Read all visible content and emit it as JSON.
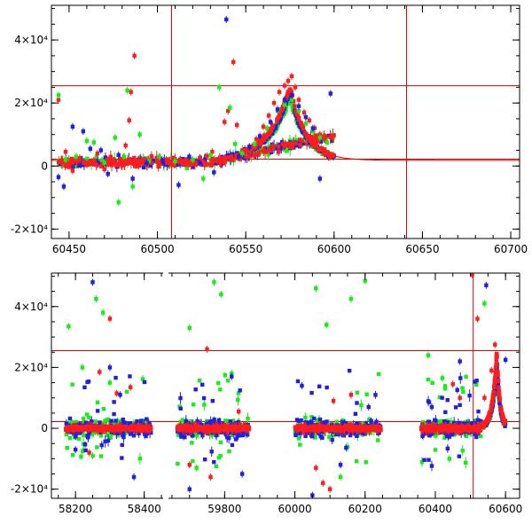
{
  "colors": {
    "red": "#ff1c1c",
    "green": "#14ef14",
    "blue": "#1f1fe6",
    "model_line": "#e00000",
    "frame": "#000000"
  },
  "chart_data": [
    {
      "type": "scatter",
      "title": "",
      "xlabel": "",
      "ylabel": "",
      "xlim": [
        60440,
        60705
      ],
      "ylim": [
        -23000,
        51000
      ],
      "x_ticks": [
        60450,
        60500,
        60550,
        60600,
        60650,
        60700
      ],
      "x_tick_labels": [
        "60450",
        "60500",
        "60550",
        "60600",
        "60650",
        "60700"
      ],
      "y_ticks": [
        -20000,
        0,
        20000,
        40000
      ],
      "y_tick_labels": [
        "-2×10⁴",
        "0",
        "2×10⁴",
        "4×10⁴"
      ],
      "reference_lines": {
        "horizontal": [
          25500,
          2200
        ],
        "vertical": [
          60508,
          60641
        ]
      },
      "model_curve": {
        "peak_x": 60575,
        "peak_y": 23000,
        "baseline": 1800,
        "x_range": [
          60440,
          60705
        ]
      },
      "series": [
        {
          "color": "red",
          "points": [
            {
              "x": 60444,
              "y": 21000
            },
            {
              "x": 60448,
              "y": 4500
            },
            {
              "x": 60452,
              "y": -1500
            },
            {
              "x": 60456,
              "y": 2500
            },
            {
              "x": 60460,
              "y": 500
            },
            {
              "x": 60464,
              "y": 1800
            },
            {
              "x": 60466,
              "y": 4000
            },
            {
              "x": 60470,
              "y": -1000
            },
            {
              "x": 60474,
              "y": 2000
            },
            {
              "x": 60478,
              "y": 600
            },
            {
              "x": 60482,
              "y": 6500
            },
            {
              "x": 60484,
              "y": 14500
            },
            {
              "x": 60485,
              "y": 23500
            },
            {
              "x": 60487,
              "y": 35000
            },
            {
              "x": 60490,
              "y": 1200
            },
            {
              "x": 60495,
              "y": 1500
            },
            {
              "x": 60500,
              "y": 1300
            },
            {
              "x": 60505,
              "y": 2000
            },
            {
              "x": 60512,
              "y": 1400
            },
            {
              "x": 60518,
              "y": 1800
            },
            {
              "x": 60524,
              "y": 2600
            },
            {
              "x": 60528,
              "y": 3200
            },
            {
              "x": 60531,
              "y": 4500
            },
            {
              "x": 60534,
              "y": 1500
            },
            {
              "x": 60538,
              "y": 14000
            },
            {
              "x": 60540,
              "y": 17500
            },
            {
              "x": 60542,
              "y": 3000
            },
            {
              "x": 60543,
              "y": 33000
            },
            {
              "x": 60545,
              "y": 13000
            },
            {
              "x": 60548,
              "y": 4500
            },
            {
              "x": 60552,
              "y": 6000
            },
            {
              "x": 60556,
              "y": 8500
            },
            {
              "x": 60560,
              "y": 12500
            },
            {
              "x": 60563,
              "y": 16000
            },
            {
              "x": 60566,
              "y": 20000
            },
            {
              "x": 60569,
              "y": 23500
            },
            {
              "x": 60572,
              "y": 25500
            },
            {
              "x": 60574,
              "y": 27000
            },
            {
              "x": 60576,
              "y": 28500
            },
            {
              "x": 60578,
              "y": 25000
            },
            {
              "x": 60580,
              "y": 21000
            },
            {
              "x": 60583,
              "y": 17000
            },
            {
              "x": 60586,
              "y": 14500
            },
            {
              "x": 60589,
              "y": 12000
            },
            {
              "x": 60592,
              "y": 10000
            },
            {
              "x": 60595,
              "y": 8500
            }
          ]
        },
        {
          "color": "green",
          "points": [
            {
              "x": 60444,
              "y": 22500
            },
            {
              "x": 60448,
              "y": 2000
            },
            {
              "x": 60454,
              "y": 3000
            },
            {
              "x": 60460,
              "y": 8000
            },
            {
              "x": 60464,
              "y": 7500
            },
            {
              "x": 60470,
              "y": 1000
            },
            {
              "x": 60476,
              "y": 9000
            },
            {
              "x": 60478,
              "y": -11500
            },
            {
              "x": 60481,
              "y": 3000
            },
            {
              "x": 60483,
              "y": 24000
            },
            {
              "x": 60486,
              "y": -6500
            },
            {
              "x": 60490,
              "y": 10000
            },
            {
              "x": 60495,
              "y": 1500
            },
            {
              "x": 60501,
              "y": 3000
            },
            {
              "x": 60510,
              "y": 1500
            },
            {
              "x": 60520,
              "y": 2000
            },
            {
              "x": 60526,
              "y": -4000
            },
            {
              "x": 60530,
              "y": 3500
            },
            {
              "x": 60535,
              "y": 25000
            },
            {
              "x": 60541,
              "y": 18500
            },
            {
              "x": 60544,
              "y": 7000
            },
            {
              "x": 60548,
              "y": 4000
            },
            {
              "x": 60555,
              "y": 7000
            },
            {
              "x": 60562,
              "y": 12000
            },
            {
              "x": 60568,
              "y": 17500
            },
            {
              "x": 60572,
              "y": 19500
            },
            {
              "x": 60576,
              "y": 21000
            },
            {
              "x": 60580,
              "y": 17500
            },
            {
              "x": 60584,
              "y": 13500
            },
            {
              "x": 60588,
              "y": 11000
            },
            {
              "x": 60592,
              "y": 9000
            },
            {
              "x": 60596,
              "y": 7500
            }
          ]
        },
        {
          "color": "blue",
          "points": [
            {
              "x": 60444,
              "y": -3500
            },
            {
              "x": 60447,
              "y": -6500
            },
            {
              "x": 60452,
              "y": 12500
            },
            {
              "x": 60458,
              "y": 11000
            },
            {
              "x": 60462,
              "y": 5500
            },
            {
              "x": 60468,
              "y": 5000
            },
            {
              "x": 60472,
              "y": -2500
            },
            {
              "x": 60478,
              "y": 3500
            },
            {
              "x": 60486,
              "y": -4000
            },
            {
              "x": 60494,
              "y": 1000
            },
            {
              "x": 60503,
              "y": 1500
            },
            {
              "x": 60512,
              "y": -6000
            },
            {
              "x": 60518,
              "y": 3000
            },
            {
              "x": 60524,
              "y": 1000
            },
            {
              "x": 60532,
              "y": -2000
            },
            {
              "x": 60539,
              "y": 46500
            },
            {
              "x": 60546,
              "y": 3000
            },
            {
              "x": 60552,
              "y": 6000
            },
            {
              "x": 60558,
              "y": 9500
            },
            {
              "x": 60564,
              "y": 14000
            },
            {
              "x": 60568,
              "y": 18000
            },
            {
              "x": 60572,
              "y": 21000
            },
            {
              "x": 60576,
              "y": 22500
            },
            {
              "x": 60580,
              "y": 19000
            },
            {
              "x": 60584,
              "y": 15500
            },
            {
              "x": 60588,
              "y": 12000
            },
            {
              "x": 60592,
              "y": -4000
            },
            {
              "x": 60598,
              "y": 23000
            }
          ]
        }
      ]
    },
    {
      "type": "scatter",
      "title": "",
      "xlabel": "",
      "ylabel": "",
      "ylim": [
        -23000,
        51000
      ],
      "x_ticks": [
        58200,
        58400,
        59800,
        60000,
        60200,
        60400,
        60600
      ],
      "x_tick_labels": [
        "58200",
        "58400",
        "59800",
        "60000",
        "60200",
        "60400",
        "60600"
      ],
      "y_ticks": [
        -20000,
        0,
        20000,
        40000
      ],
      "y_tick_labels": [
        "-2×10⁴",
        "0",
        "2×10⁴",
        "4×10⁴"
      ],
      "broken_axis": true,
      "segments": [
        {
          "xlim": [
            58130,
            58455
          ]
        },
        {
          "xlim": [
            59640,
            60640
          ]
        }
      ],
      "reference_lines": {
        "horizontal": [
          25500,
          2200
        ],
        "vertical": [
          60508,
          60641
        ]
      },
      "observing_seasons": [
        {
          "x_range": [
            58170,
            58420
          ],
          "base": 0
        },
        {
          "x_range": [
            59665,
            59870
          ],
          "base": 0
        },
        {
          "x_range": [
            60000,
            60245
          ],
          "base": 0
        },
        {
          "x_range": [
            60360,
            60530
          ],
          "base": 0
        }
      ],
      "flare": {
        "peak_x": 60575,
        "peak_y": 25000,
        "baseline": 0
      },
      "series": [
        {
          "color": "red",
          "points": [
            {
              "x": 58270,
              "y": 18500
            },
            {
              "x": 58300,
              "y": 36000
            },
            {
              "x": 58320,
              "y": 11500
            },
            {
              "x": 58360,
              "y": 13500
            },
            {
              "x": 58240,
              "y": -8000
            },
            {
              "x": 59750,
              "y": 26000
            },
            {
              "x": 59700,
              "y": -12000
            },
            {
              "x": 59760,
              "y": -16000
            },
            {
              "x": 59840,
              "y": 5500
            },
            {
              "x": 60080,
              "y": -18000
            },
            {
              "x": 60100,
              "y": -20000
            },
            {
              "x": 60110,
              "y": 9000
            },
            {
              "x": 60160,
              "y": 11000
            },
            {
              "x": 60060,
              "y": -13000
            },
            {
              "x": 60450,
              "y": 14500
            },
            {
              "x": 60470,
              "y": 10000
            },
            {
              "x": 60505,
              "y": 50500
            },
            {
              "x": 60520,
              "y": 36000
            },
            {
              "x": 60540,
              "y": 10000
            },
            {
              "x": 60560,
              "y": 19000
            },
            {
              "x": 60570,
              "y": 27500
            }
          ]
        },
        {
          "color": "green",
          "points": [
            {
              "x": 58180,
              "y": 33500
            },
            {
              "x": 58220,
              "y": 20000
            },
            {
              "x": 58260,
              "y": 42500
            },
            {
              "x": 58280,
              "y": 38000
            },
            {
              "x": 58300,
              "y": 15000
            },
            {
              "x": 58250,
              "y": -9000
            },
            {
              "x": 59700,
              "y": 33000
            },
            {
              "x": 59770,
              "y": 48000
            },
            {
              "x": 59790,
              "y": 44000
            },
            {
              "x": 59820,
              "y": 18000
            },
            {
              "x": 59720,
              "y": -13000
            },
            {
              "x": 60060,
              "y": 46000
            },
            {
              "x": 60090,
              "y": 34000
            },
            {
              "x": 60160,
              "y": 42500
            },
            {
              "x": 60200,
              "y": 48500
            },
            {
              "x": 60130,
              "y": -16000
            },
            {
              "x": 60380,
              "y": 24000
            },
            {
              "x": 60420,
              "y": 16500
            },
            {
              "x": 60440,
              "y": -10000
            },
            {
              "x": 60540,
              "y": 41000
            }
          ]
        },
        {
          "color": "blue",
          "points": [
            {
              "x": 58250,
              "y": 48000
            },
            {
              "x": 58300,
              "y": 20000
            },
            {
              "x": 58330,
              "y": 11000
            },
            {
              "x": 58370,
              "y": -16000
            },
            {
              "x": 58200,
              "y": -7000
            },
            {
              "x": 59700,
              "y": -20000
            },
            {
              "x": 59820,
              "y": 17000
            },
            {
              "x": 59850,
              "y": -15000
            },
            {
              "x": 60020,
              "y": 14000
            },
            {
              "x": 60130,
              "y": -12000
            },
            {
              "x": 60210,
              "y": 7000
            },
            {
              "x": 60050,
              "y": -22000
            },
            {
              "x": 60390,
              "y": 7000
            },
            {
              "x": 60470,
              "y": 22000
            },
            {
              "x": 60545,
              "y": 47000
            },
            {
              "x": 60600,
              "y": 22500
            }
          ]
        }
      ]
    }
  ]
}
